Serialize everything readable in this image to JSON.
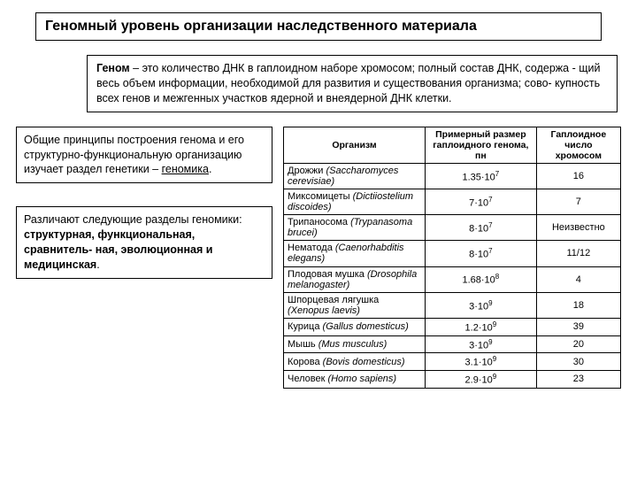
{
  "title": "Геномный  уровень организации наследственного  материала",
  "definition": {
    "term": "Геном",
    "text": " – это количество ДНК в гаплоидном наборе хромосом; полный состав  ДНК,  содержа - щий весь объем информации, необходимой для развития и существования организма;  сово- купность всех генов и межгенных участков ядерной и внеядерной ДНК клетки."
  },
  "box1": {
    "prefix": "Общие принципы построения генома и его структурно-функциональную организацию изучает раздел генетики – ",
    "emph": "геномика",
    "suffix": "."
  },
  "box2": {
    "prefix": "Различают следующие разделы геномики: ",
    "emph": "структурная, функциональная, сравнитель- ная, эволюционная и медицинская",
    "suffix": "."
  },
  "table": {
    "headers": [
      "Организм",
      "Примерный размер гаплоидного генома, пн",
      "Гаплоидное число хромосом"
    ],
    "rows": [
      {
        "common": "Дрожжи ",
        "latin": "(Saccharomyces cerevisiae)",
        "size_mant": "1.35",
        "size_exp": "7",
        "chrom": "16"
      },
      {
        "common": "Миксомицеты ",
        "latin": "(Dictiiostelium discoides)",
        "size_mant": "7",
        "size_exp": "7",
        "size_prefix": "",
        "chrom": "7",
        "dotless": true
      },
      {
        "common": "Трипаносома ",
        "latin": "(Trypanasoma brucei)",
        "size_mant": "8",
        "size_exp": "7",
        "chrom": "Неизвестно",
        "dotless": true
      },
      {
        "common": "Нематода ",
        "latin": "(Caenorhabditis elegans)",
        "size_mant": "8",
        "size_exp": "7",
        "chrom": "11/12",
        "dotless": true
      },
      {
        "common": "Плодовая мушка ",
        "latin": "(Drosophila melanogaster)",
        "size_mant": "1.68",
        "size_exp": "8",
        "chrom": "4"
      },
      {
        "common": "Шпорцевая лягушка ",
        "latin": "(Xenopus laevis)",
        "size_mant": "3",
        "size_exp": "9",
        "chrom": "18",
        "dotless": true
      },
      {
        "common": "Курица ",
        "latin": "(Gallus domesticus)",
        "size_mant": "1.2",
        "size_exp": "9",
        "chrom": "39"
      },
      {
        "common": "Мышь ",
        "latin": "(Mus musculus)",
        "size_mant": "3",
        "size_exp": "9",
        "chrom": "20",
        "dotless": true
      },
      {
        "common": "Корова ",
        "latin": "(Bovis domesticus)",
        "size_mant": "3.1",
        "size_exp": "9",
        "chrom": "30"
      },
      {
        "common": "Человек ",
        "latin": "(Homo sapiens)",
        "size_mant": "2.9",
        "size_exp": "9",
        "chrom": "23"
      }
    ]
  }
}
